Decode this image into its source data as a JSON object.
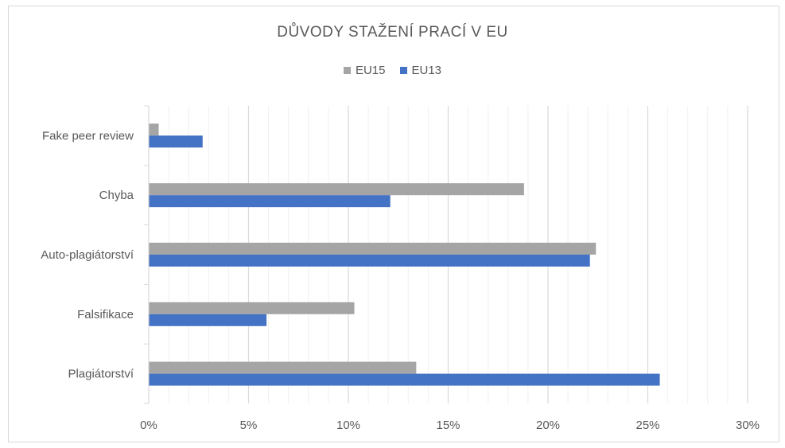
{
  "chart_data": {
    "type": "bar",
    "orientation": "horizontal",
    "title": "DŮVODY STAŽENÍ PRACÍ V EU",
    "categories": [
      "Fake peer review",
      "Chyba",
      "Auto-plagiátorství",
      "Falsifikace",
      "Plagiátorství"
    ],
    "series": [
      {
        "name": "EU15",
        "color": "#a5a5a5",
        "values": [
          0.5,
          18.8,
          22.4,
          10.3,
          13.4
        ]
      },
      {
        "name": "EU13",
        "color": "#4472c4",
        "values": [
          2.7,
          12.1,
          22.1,
          5.9,
          25.6
        ]
      }
    ],
    "xlim": [
      0,
      30
    ],
    "xticks": [
      0,
      5,
      10,
      15,
      20,
      25,
      30
    ],
    "xtick_labels": [
      "0%",
      "5%",
      "10%",
      "15%",
      "20%",
      "25%",
      "30%"
    ],
    "xlabel": "",
    "ylabel": "",
    "grid": true,
    "legend_position": "top"
  }
}
